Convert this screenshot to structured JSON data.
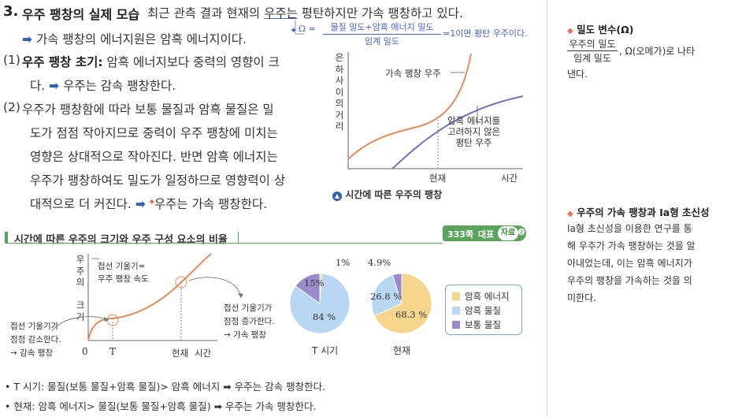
{
  "section": {
    "num": "3.",
    "title": "우주 팽창의 실제 모습",
    "intro_a": "최근 관측 결과 현재의",
    "intro_b": "우주는",
    "intro_c": "평탄하지만 가속 팽창하고 있다.",
    "line2": "가속 팽창의 에너지원은 암흑 에너지이다.",
    "omega_lhs": "Ω =",
    "omega_num": "물질 밀도+암흑 에너지 밀도",
    "omega_den": "임계 밀도",
    "omega_rhs": "=1이면 평탄 우주이다."
  },
  "item1": {
    "num": "(1)",
    "bold": "우주 팽창 초기:",
    "text": "암흑 에너지보다 중력의 영향이 크",
    "line2a": "다.",
    "line2b": "우주는 감속 팽창한다."
  },
  "item2": {
    "num": "(2)",
    "l1": "우주가 팽창함에 따라 보통 물질과 암흑 물질은 밀",
    "l2": "도가 점점 작아지므로 중력이 우주 팽창에 미치는",
    "l3": "영향은 상대적으로 작아진다. 반면 암흑 에너지는",
    "l4": "우주가 팽창하여도 밀도가 일정하므로 영향력이 상",
    "l5a": "대적으로 더 커진다.",
    "l5b": "우주는 가속 팽창한다."
  },
  "arrow_glyph": "➡",
  "diamond_glyph": "◆",
  "graph1": {
    "ylabel_chars": [
      "은",
      "하",
      "사",
      "이",
      "의",
      "거",
      "리"
    ],
    "accel_label": "가속 팽창 우주",
    "flat_label_1": "암흑 에너지를",
    "flat_label_2": "고려하지 않은",
    "flat_label_3": "평탄 우주",
    "x_now": "현재",
    "x_time": "시간",
    "caption_icon": "up-circle-icon",
    "caption": "시간에 따른 우주의 팽창"
  },
  "sub_section": {
    "title": "시간에 따른 우주의 크기와 우주 구성 요소의 비율",
    "badge_page": "333쪽",
    "badge_label": "대표",
    "badge_ref": "자료",
    "badge_num": "❷"
  },
  "graph2": {
    "ylabel_chars": [
      "우",
      "주",
      "의",
      "",
      "크",
      "기"
    ],
    "tangent_top_1": "접선 기울기=",
    "tangent_top_2": "우주 팽창 속도",
    "left_note_1": "접선 기울기가",
    "left_note_2": "점점 감소한다.",
    "left_note_3": "→ 감속 팽창",
    "right_note_1": "접선 기울기가",
    "right_note_2": "점점 증가한다.",
    "right_note_3": "→ 가속 팽창",
    "x_zero": "0",
    "x_T": "T",
    "x_now": "현재",
    "x_time": "시간"
  },
  "chart_data": [
    {
      "type": "pie",
      "title": "T 시기",
      "slices": [
        {
          "name": "암흑 에너지",
          "value": 1,
          "label": "1%"
        },
        {
          "name": "암흑 물질",
          "value": 84,
          "label": "84 %"
        },
        {
          "name": "보통 물질",
          "value": 15,
          "label": "15%"
        }
      ]
    },
    {
      "type": "pie",
      "title": "현재",
      "slices": [
        {
          "name": "암흑 에너지",
          "value": 68.3,
          "label": "68.3 %"
        },
        {
          "name": "암흑 물질",
          "value": 26.8,
          "label": "26.8 %"
        },
        {
          "name": "보통 물질",
          "value": 4.9,
          "label": "4.9%"
        }
      ]
    }
  ],
  "colors": {
    "dark_energy": "#f7d58d",
    "dark_matter": "#b9d7f2",
    "normal_matter": "#9a8ccc",
    "accel_curve": "#e58a5a",
    "flat_curve": "#6f74b8",
    "accent_blue": "#2f5fb3",
    "badge_green": "#5ba55a"
  },
  "legend": {
    "items": [
      "암흑 에너지",
      "암흑 물질",
      "보통 물질"
    ]
  },
  "summary": {
    "bullet": "•",
    "l1": "T 시기: 물질(보통 물질+암흑 물질)> 암흑 에너지 ➡ 우주는 감속 팽창한다.",
    "l2": "현재: 암흑 에너지> 물질(보통 물질+암흑 물질) ➡ 우주는 가속 팽창한다."
  },
  "sidebar": {
    "note1_title": "밀도 변수(Ω)",
    "note1_num": "우주의 밀도",
    "note1_den": "임계 밀도",
    "note1_text": ", Ω(오메가)로 나타",
    "note1_text2": "낸다.",
    "note2_title": "우주의 가속 팽창과 Ia형 초신성",
    "note2_l1": "Ia형 초신성을 이용한 연구를 통",
    "note2_l2": "해 우주가 가속 팽창하는 것을 알",
    "note2_l3": "아내었는데, 이는 암흑 에너지가",
    "note2_l4": "우주의 팽창을 가속하는 것을 의",
    "note2_l5": "미한다."
  }
}
